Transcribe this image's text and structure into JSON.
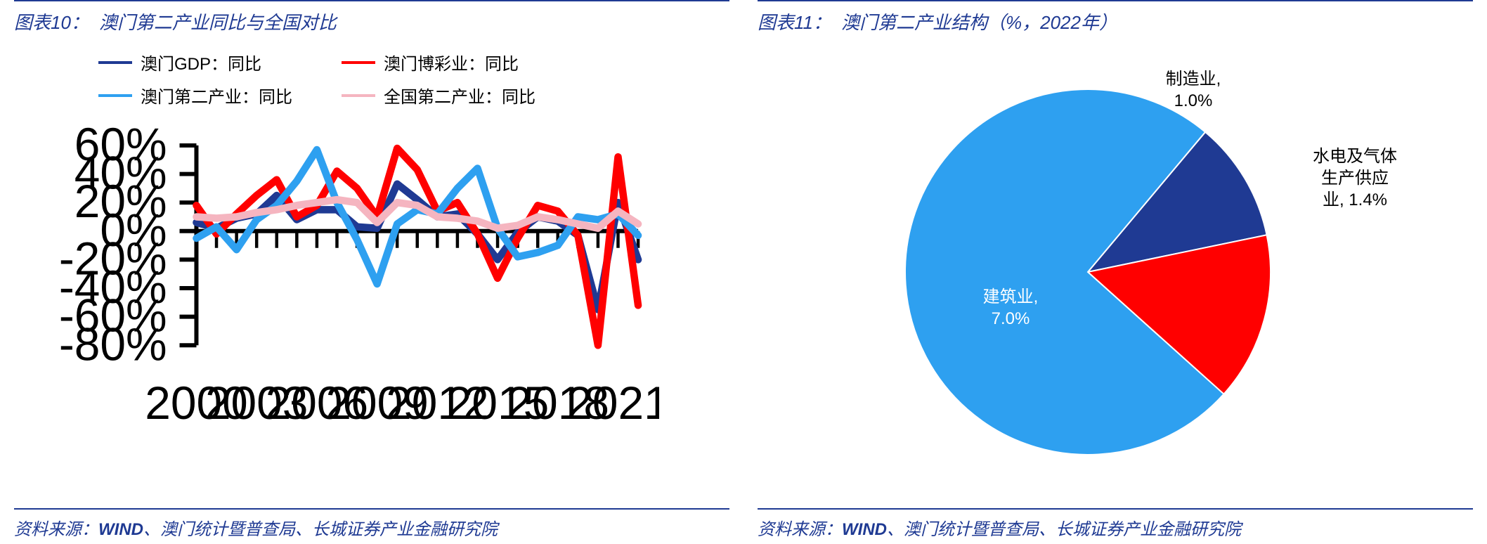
{
  "left": {
    "title_prefix": "图表10：",
    "title": "澳门第二产业同比与全国对比",
    "source_label": "资料来源：",
    "source_wind": "WIND",
    "source_rest": "、澳门统计暨普查局、长城证券产业金融研究院",
    "chart": {
      "type": "line",
      "ylim": [
        -80,
        60
      ],
      "ytick_step": 20,
      "xlim": [
        2000,
        2022
      ],
      "xticks": [
        2000,
        2003,
        2006,
        2009,
        2012,
        2015,
        2018,
        2021
      ],
      "y_suffix": "%",
      "axis_color": "#000000",
      "grid_color": "#ffffff",
      "background_color": "#ffffff",
      "tick_fontsize": 22,
      "legend_fontsize": 24,
      "line_width": 3.5,
      "series": [
        {
          "name": "澳门GDP：同比",
          "color": "#1f3a93",
          "x": [
            2000,
            2001,
            2002,
            2003,
            2004,
            2005,
            2006,
            2007,
            2008,
            2009,
            2010,
            2011,
            2012,
            2013,
            2014,
            2015,
            2016,
            2017,
            2018,
            2019,
            2020,
            2021,
            2022
          ],
          "y": [
            6,
            2,
            9,
            12,
            25,
            8,
            15,
            15,
            3,
            2,
            33,
            22,
            10,
            12,
            -2,
            -20,
            -1,
            10,
            7,
            -3,
            -55,
            20,
            -20
          ]
        },
        {
          "name": "澳门博彩业：同比",
          "color": "#ff0000",
          "x": [
            2000,
            2001,
            2002,
            2003,
            2004,
            2005,
            2006,
            2007,
            2008,
            2009,
            2010,
            2011,
            2012,
            2013,
            2014,
            2015,
            2016,
            2017,
            2018,
            2019,
            2020,
            2021,
            2022
          ],
          "y": [
            18,
            -2,
            12,
            25,
            36,
            10,
            18,
            42,
            30,
            10,
            58,
            43,
            14,
            20,
            -2,
            -33,
            -5,
            18,
            14,
            -3,
            -80,
            52,
            -52
          ]
        },
        {
          "name": "澳门第二产业：同比",
          "color": "#2ea0f0",
          "x": [
            2000,
            2001,
            2002,
            2003,
            2004,
            2005,
            2006,
            2007,
            2008,
            2009,
            2010,
            2011,
            2012,
            2013,
            2014,
            2015,
            2016,
            2017,
            2018,
            2019,
            2020,
            2021,
            2022
          ],
          "y": [
            -5,
            3,
            -13,
            8,
            18,
            35,
            57,
            20,
            -6,
            -37,
            5,
            15,
            12,
            30,
            44,
            2,
            -18,
            -15,
            -10,
            10,
            8,
            12,
            -3
          ]
        },
        {
          "name": "全国第二产业：同比",
          "color": "#f5b5c0",
          "x": [
            2000,
            2001,
            2002,
            2003,
            2004,
            2005,
            2006,
            2007,
            2008,
            2009,
            2010,
            2011,
            2012,
            2013,
            2014,
            2015,
            2016,
            2017,
            2018,
            2019,
            2020,
            2021,
            2022
          ],
          "y": [
            10,
            9,
            10,
            13,
            15,
            18,
            20,
            22,
            20,
            6,
            20,
            18,
            10,
            9,
            7,
            2,
            4,
            10,
            8,
            5,
            2,
            14,
            5
          ]
        }
      ]
    }
  },
  "right": {
    "title_prefix": "图表11：",
    "title": "澳门第二产业结构（%，2022年）",
    "source_label": "资料来源：",
    "source_wind": "WIND",
    "source_rest": "、澳门统计暨普查局、长城证券产业金融研究院",
    "chart": {
      "type": "pie",
      "background_color": "#ffffff",
      "label_fontsize": 24,
      "start_angle_deg": 40,
      "slices": [
        {
          "name": "制造业",
          "value": 1.0,
          "display": "制造业,\n1.0%",
          "color": "#1f3a93"
        },
        {
          "name": "水电及气体生产供应业",
          "value": 1.4,
          "display": "水电及气体\n生产供应\n业, 1.4%",
          "color": "#ff0000"
        },
        {
          "name": "建筑业",
          "value": 7.0,
          "display": "建筑业,\n7.0%",
          "color": "#2ea0f0"
        }
      ]
    }
  }
}
